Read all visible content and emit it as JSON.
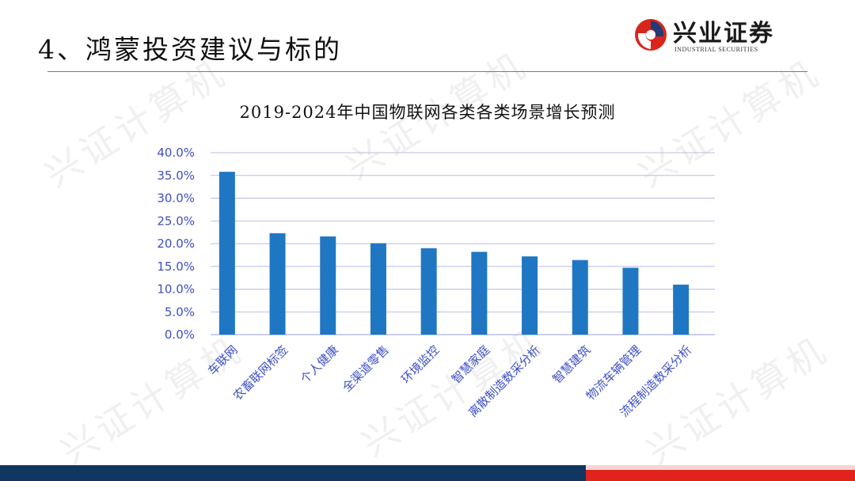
{
  "header": {
    "title": "4、鸿蒙投资建议与标的",
    "brand_name": "兴业证券",
    "brand_name_en": "INDUSTRIAL SECURITIES"
  },
  "watermark": {
    "text": "兴证计算机"
  },
  "chart_data": {
    "type": "bar",
    "title": "2019-2024年中国物联网各类各类场景增长预测",
    "categories": [
      "车联网",
      "农畜联网标签",
      "个人健康",
      "全渠道零售",
      "环境监控",
      "智慧家庭",
      "离散制造数采分析",
      "智慧建筑",
      "物流车辆管理",
      "流程制造数采分析"
    ],
    "values": [
      35.8,
      22.3,
      21.6,
      20.1,
      19.0,
      18.2,
      17.2,
      16.4,
      14.7,
      11.0
    ],
    "ylim": [
      0,
      40
    ],
    "yticks": [
      "0.0%",
      "5.0%",
      "10.0%",
      "15.0%",
      "20.0%",
      "25.0%",
      "30.0%",
      "35.0%",
      "40.0%"
    ],
    "xlabel": "",
    "ylabel": "",
    "grid": true,
    "bar_color": "#1f77c4",
    "label_color": "#3d4fc4"
  }
}
